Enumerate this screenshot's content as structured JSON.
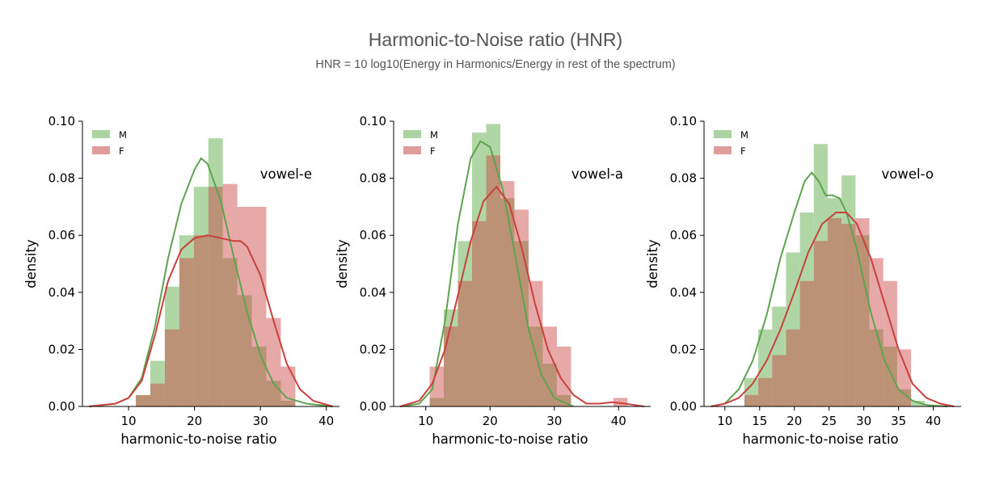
{
  "title": "Harmonic-to-Noise ratio (HNR)",
  "subtitle": "HNR = 10 log10(Energy in Harmonics/Energy in rest of the spectrum)",
  "colors": {
    "M": "#5ea34f",
    "F": "#c9403d",
    "M_fill": "#9ccc8f",
    "F_fill": "#dd8a8a",
    "overlap": "#a67c6a"
  },
  "chart_data": [
    {
      "type": "bar",
      "title": "",
      "annotation": "vowel-e",
      "xlabel": "harmonic-to-noise ratio",
      "ylabel": "density",
      "xlim": [
        3,
        42
      ],
      "ylim": [
        0,
        0.1
      ],
      "xticks": [
        10,
        20,
        30,
        40
      ],
      "yticks": [
        0.0,
        0.02,
        0.04,
        0.06,
        0.08,
        0.1
      ],
      "legend": {
        "position": "top-left",
        "entries": [
          "M",
          "F"
        ]
      },
      "bin_width": 2.2,
      "series": [
        {
          "name": "M",
          "kind": "histogram",
          "bins": [
            [
              11.1,
              0.004
            ],
            [
              13.3,
              0.016
            ],
            [
              15.5,
              0.042
            ],
            [
              17.7,
              0.06
            ],
            [
              19.9,
              0.077
            ],
            [
              22.1,
              0.094
            ],
            [
              24.3,
              0.052
            ],
            [
              26.5,
              0.039
            ],
            [
              28.7,
              0.021
            ],
            [
              30.9,
              0.009
            ],
            [
              33.1,
              0.002
            ]
          ]
        },
        {
          "name": "F",
          "kind": "histogram",
          "bins": [
            [
              11.1,
              0.004
            ],
            [
              13.3,
              0.008
            ],
            [
              15.5,
              0.027
            ],
            [
              17.7,
              0.052
            ],
            [
              19.9,
              0.06
            ],
            [
              22.1,
              0.077
            ],
            [
              24.3,
              0.078
            ],
            [
              26.5,
              0.07
            ],
            [
              28.7,
              0.07
            ],
            [
              30.9,
              0.031
            ],
            [
              33.1,
              0.014
            ]
          ]
        },
        {
          "name": "M",
          "kind": "kde",
          "points": [
            [
              4,
              0.0
            ],
            [
              8,
              0.001
            ],
            [
              10,
              0.003
            ],
            [
              12,
              0.01
            ],
            [
              14,
              0.028
            ],
            [
              16,
              0.052
            ],
            [
              18,
              0.071
            ],
            [
              20,
              0.083
            ],
            [
              21,
              0.087
            ],
            [
              22,
              0.085
            ],
            [
              24,
              0.072
            ],
            [
              26,
              0.052
            ],
            [
              28,
              0.033
            ],
            [
              30,
              0.018
            ],
            [
              32,
              0.008
            ],
            [
              34,
              0.003
            ],
            [
              37,
              0.001
            ],
            [
              41,
              0.0
            ]
          ]
        },
        {
          "name": "F",
          "kind": "kde",
          "points": [
            [
              4,
              0.0
            ],
            [
              8,
              0.001
            ],
            [
              10,
              0.003
            ],
            [
              12,
              0.009
            ],
            [
              14,
              0.025
            ],
            [
              16,
              0.044
            ],
            [
              18,
              0.055
            ],
            [
              20,
              0.059
            ],
            [
              22,
              0.06
            ],
            [
              24,
              0.059
            ],
            [
              26,
              0.058
            ],
            [
              27,
              0.058
            ],
            [
              28,
              0.056
            ],
            [
              30,
              0.046
            ],
            [
              32,
              0.03
            ],
            [
              34,
              0.015
            ],
            [
              36,
              0.006
            ],
            [
              38,
              0.002
            ],
            [
              41,
              0.0
            ]
          ]
        }
      ]
    },
    {
      "type": "bar",
      "title": "",
      "annotation": "vowel-a",
      "xlabel": "harmonic-to-noise ratio",
      "ylabel": "density",
      "xlim": [
        5,
        45
      ],
      "ylim": [
        0,
        0.1
      ],
      "xticks": [
        10,
        20,
        30,
        40
      ],
      "yticks": [
        0.0,
        0.02,
        0.04,
        0.06,
        0.08,
        0.1
      ],
      "legend": {
        "position": "top-left",
        "entries": [
          "M",
          "F"
        ]
      },
      "bin_width": 2.2,
      "series": [
        {
          "name": "M",
          "kind": "histogram",
          "bins": [
            [
              10.6,
              0.003
            ],
            [
              12.8,
              0.034
            ],
            [
              15.0,
              0.058
            ],
            [
              17.2,
              0.096
            ],
            [
              19.4,
              0.099
            ],
            [
              21.6,
              0.073
            ],
            [
              23.8,
              0.058
            ],
            [
              26.0,
              0.028
            ],
            [
              28.2,
              0.015
            ],
            [
              30.4,
              0.004
            ]
          ]
        },
        {
          "name": "F",
          "kind": "histogram",
          "bins": [
            [
              10.6,
              0.014
            ],
            [
              12.8,
              0.028
            ],
            [
              15.0,
              0.044
            ],
            [
              17.2,
              0.065
            ],
            [
              19.4,
              0.088
            ],
            [
              21.6,
              0.079
            ],
            [
              23.8,
              0.069
            ],
            [
              26.0,
              0.044
            ],
            [
              28.2,
              0.028
            ],
            [
              30.4,
              0.021
            ],
            [
              32.6,
              0.0
            ],
            [
              34.8,
              0.0
            ],
            [
              37.0,
              0.0
            ],
            [
              39.2,
              0.003
            ]
          ]
        },
        {
          "name": "M",
          "kind": "kde",
          "points": [
            [
              6,
              0.0
            ],
            [
              9,
              0.001
            ],
            [
              11,
              0.006
            ],
            [
              13,
              0.03
            ],
            [
              15,
              0.064
            ],
            [
              17,
              0.087
            ],
            [
              18.5,
              0.093
            ],
            [
              20,
              0.091
            ],
            [
              22,
              0.076
            ],
            [
              24,
              0.052
            ],
            [
              26,
              0.027
            ],
            [
              28,
              0.011
            ],
            [
              30,
              0.003
            ],
            [
              33,
              0.0
            ]
          ]
        },
        {
          "name": "F",
          "kind": "kde",
          "points": [
            [
              6,
              0.0
            ],
            [
              9,
              0.002
            ],
            [
              11,
              0.008
            ],
            [
              13,
              0.02
            ],
            [
              15,
              0.039
            ],
            [
              17,
              0.058
            ],
            [
              19,
              0.072
            ],
            [
              21,
              0.077
            ],
            [
              23,
              0.071
            ],
            [
              25,
              0.055
            ],
            [
              27,
              0.036
            ],
            [
              29,
              0.02
            ],
            [
              31,
              0.01
            ],
            [
              33,
              0.004
            ],
            [
              35,
              0.001
            ],
            [
              37,
              0.001
            ],
            [
              39,
              0.0015
            ],
            [
              41,
              0.001
            ],
            [
              44,
              0.0
            ]
          ]
        }
      ]
    },
    {
      "type": "bar",
      "title": "",
      "annotation": "vowel-o",
      "xlabel": "harmonic-to-noise ratio",
      "ylabel": "density",
      "xlim": [
        7,
        44
      ],
      "ylim": [
        0,
        0.1
      ],
      "xticks": [
        10,
        15,
        20,
        25,
        30,
        35,
        40
      ],
      "yticks": [
        0.0,
        0.02,
        0.04,
        0.06,
        0.08,
        0.1
      ],
      "legend": {
        "position": "top-left",
        "entries": [
          "M",
          "F"
        ]
      },
      "bin_width": 2.0,
      "series": [
        {
          "name": "M",
          "kind": "histogram",
          "bins": [
            [
              12.8,
              0.01
            ],
            [
              14.8,
              0.027
            ],
            [
              16.8,
              0.035
            ],
            [
              18.8,
              0.054
            ],
            [
              20.8,
              0.068
            ],
            [
              22.8,
              0.092
            ],
            [
              24.8,
              0.073
            ],
            [
              26.8,
              0.081
            ],
            [
              28.8,
              0.06
            ],
            [
              30.8,
              0.027
            ],
            [
              32.8,
              0.021
            ],
            [
              34.8,
              0.006
            ],
            [
              36.8,
              0.002
            ]
          ]
        },
        {
          "name": "F",
          "kind": "histogram",
          "bins": [
            [
              12.8,
              0.004
            ],
            [
              14.8,
              0.01
            ],
            [
              16.8,
              0.018
            ],
            [
              18.8,
              0.027
            ],
            [
              20.8,
              0.044
            ],
            [
              22.8,
              0.058
            ],
            [
              24.8,
              0.066
            ],
            [
              26.8,
              0.064
            ],
            [
              28.8,
              0.066
            ],
            [
              30.8,
              0.052
            ],
            [
              32.8,
              0.044
            ],
            [
              34.8,
              0.02
            ],
            [
              36.8,
              0.0
            ]
          ]
        },
        {
          "name": "M",
          "kind": "kde",
          "points": [
            [
              8,
              0.0
            ],
            [
              10,
              0.001
            ],
            [
              12,
              0.006
            ],
            [
              14,
              0.016
            ],
            [
              16,
              0.032
            ],
            [
              18,
              0.052
            ],
            [
              20,
              0.068
            ],
            [
              21.5,
              0.079
            ],
            [
              22.5,
              0.082
            ],
            [
              23.5,
              0.079
            ],
            [
              24.5,
              0.074
            ],
            [
              25.5,
              0.074
            ],
            [
              26.5,
              0.073
            ],
            [
              27.5,
              0.068
            ],
            [
              29,
              0.055
            ],
            [
              31,
              0.033
            ],
            [
              33,
              0.016
            ],
            [
              35,
              0.006
            ],
            [
              37,
              0.002
            ],
            [
              39,
              0.0005
            ],
            [
              42,
              0.0
            ]
          ]
        },
        {
          "name": "F",
          "kind": "kde",
          "points": [
            [
              8,
              0.0
            ],
            [
              10,
              0.001
            ],
            [
              12,
              0.003
            ],
            [
              14,
              0.008
            ],
            [
              16,
              0.016
            ],
            [
              18,
              0.027
            ],
            [
              20,
              0.04
            ],
            [
              22,
              0.054
            ],
            [
              24,
              0.064
            ],
            [
              26,
              0.068
            ],
            [
              27.5,
              0.068
            ],
            [
              29,
              0.064
            ],
            [
              31,
              0.052
            ],
            [
              33,
              0.036
            ],
            [
              35,
              0.02
            ],
            [
              37,
              0.008
            ],
            [
              39,
              0.003
            ],
            [
              41,
              0.001
            ],
            [
              43,
              0.0
            ]
          ]
        }
      ]
    }
  ]
}
